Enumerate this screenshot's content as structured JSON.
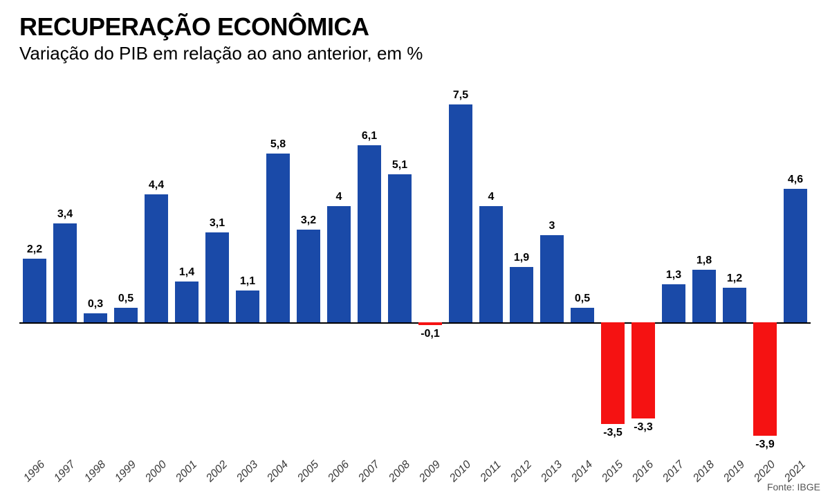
{
  "title": "RECUPERAÇÃO ECONÔMICA",
  "subtitle": "Variação do PIB em relação ao ano anterior, em %",
  "source": "Fonte: IBGE",
  "chart": {
    "type": "bar",
    "ylim": [
      -4.5,
      8.0
    ],
    "bar_width_ratio": 0.78,
    "positive_color": "#1a4aa8",
    "negative_color": "#f51212",
    "baseline_color": "#000000",
    "background_color": "#ffffff",
    "label_fontsize": 16,
    "label_fontweight": 700,
    "xlabel_fontsize": 16,
    "xlabel_fontstyle": "italic",
    "xlabel_color": "#3a3a3a",
    "xlabel_rotation": -45,
    "categories": [
      "1996",
      "1997",
      "1998",
      "1999",
      "2000",
      "2001",
      "2002",
      "2003",
      "2004",
      "2005",
      "2006",
      "2007",
      "2008",
      "2009",
      "2010",
      "2011",
      "2012",
      "2013",
      "2014",
      "2015",
      "2016",
      "2017",
      "2018",
      "2019",
      "2020",
      "2021"
    ],
    "values": [
      2.2,
      3.4,
      0.3,
      0.5,
      4.4,
      1.4,
      3.1,
      1.1,
      5.8,
      3.2,
      4.0,
      6.1,
      5.1,
      -0.1,
      7.5,
      4.0,
      1.9,
      3.0,
      0.5,
      -3.5,
      -3.3,
      1.3,
      1.8,
      1.2,
      -3.9,
      4.6
    ],
    "labels": [
      "2,2",
      "3,4",
      "0,3",
      "0,5",
      "4,4",
      "1,4",
      "3,1",
      "1,1",
      "5,8",
      "3,2",
      "4",
      "6,1",
      "5,1",
      "-0,1",
      "7,5",
      "4",
      "1,9",
      "3",
      "0,5",
      "-3,5",
      "-3,3",
      "1,3",
      "1,8",
      "1,2",
      "-3,9",
      "4,6"
    ]
  }
}
